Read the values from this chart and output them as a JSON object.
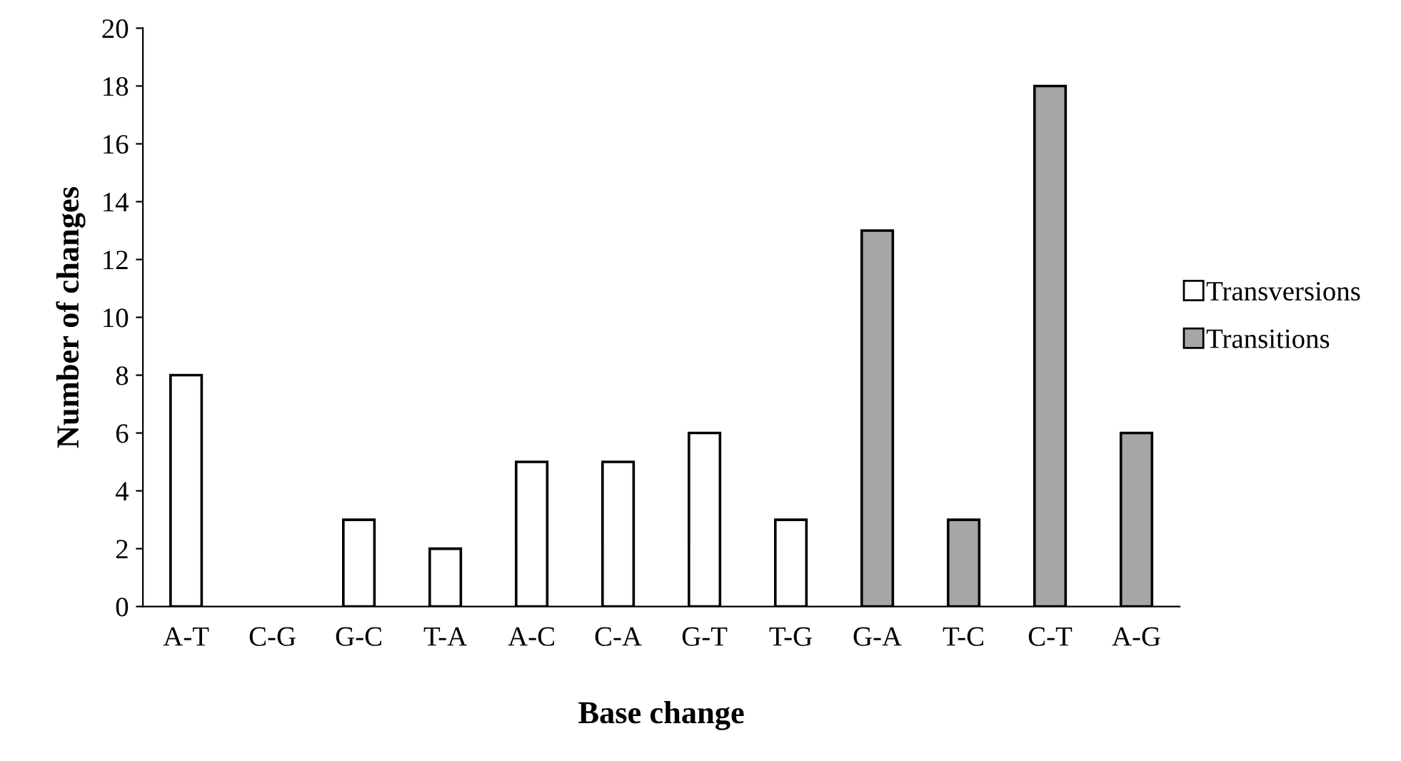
{
  "chart_data": {
    "type": "bar",
    "xlabel": "Base change",
    "ylabel": "Number of changes",
    "categories": [
      "A-T",
      "C-G",
      "G-C",
      "T-A",
      "A-C",
      "C-A",
      "G-T",
      "T-G",
      "G-A",
      "T-C",
      "C-T",
      "A-G"
    ],
    "series": [
      {
        "name": "Transversions",
        "color": "#ffffff",
        "values": [
          8,
          null,
          3,
          2,
          5,
          5,
          6,
          3,
          null,
          null,
          null,
          null
        ]
      },
      {
        "name": "Transitions",
        "color": "#a6a6a6",
        "values": [
          null,
          null,
          null,
          null,
          null,
          null,
          null,
          null,
          13,
          3,
          18,
          6
        ]
      }
    ],
    "ylim": [
      0,
      20
    ],
    "yticks": [
      0,
      2,
      4,
      6,
      8,
      10,
      12,
      14,
      16,
      18,
      20
    ],
    "grid": false,
    "legend": "right"
  }
}
